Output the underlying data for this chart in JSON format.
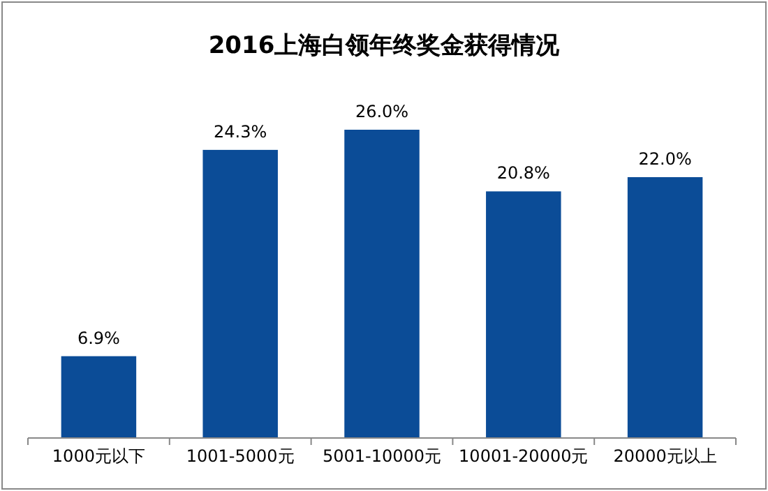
{
  "chart_data": {
    "type": "bar",
    "title": "2016上海白领年终奖金获得情况",
    "categories": [
      "1000元以下",
      "1001-5000元",
      "5001-10000元",
      "10001-20000元",
      "20000元以上"
    ],
    "values": [
      6.9,
      24.3,
      26.0,
      20.8,
      22.0
    ],
    "value_labels": [
      "6.9%",
      "24.3%",
      "26.0%",
      "20.8%",
      "22.0%"
    ],
    "color": "#0b4c97"
  }
}
